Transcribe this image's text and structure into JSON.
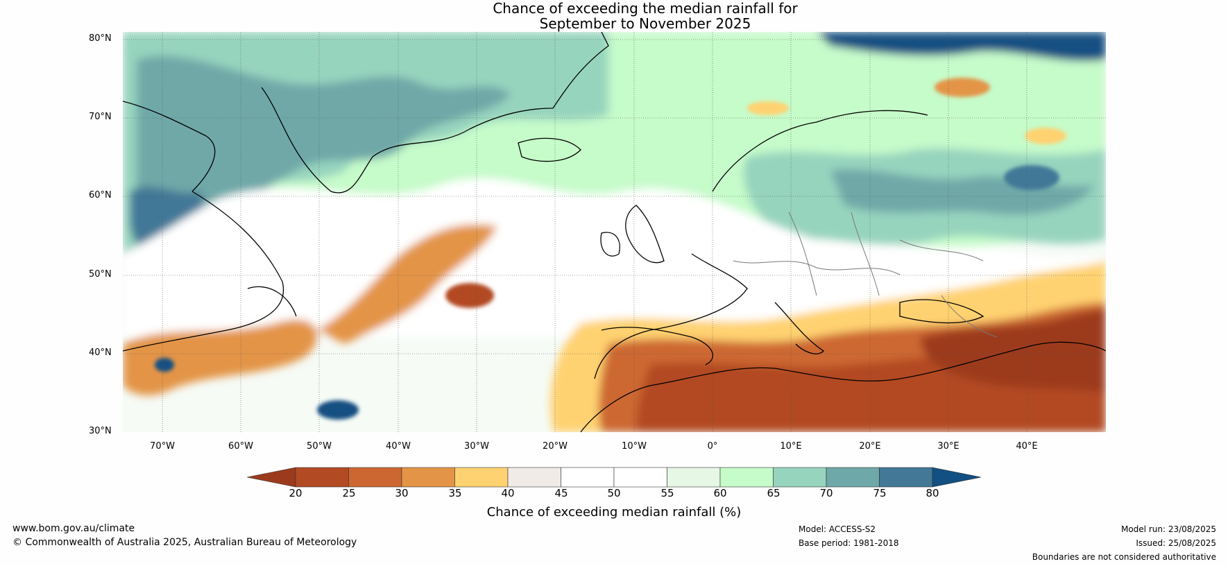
{
  "title_line1": "Chance of exceeding the median rainfall for",
  "title_line2": "September to November 2025",
  "lat_labels": [
    "80°N",
    "70°N",
    "60°N",
    "50°N",
    "40°N",
    "30°N"
  ],
  "lon_labels": [
    "70°W",
    "60°W",
    "50°W",
    "40°W",
    "30°W",
    "20°W",
    "10°W",
    "0°",
    "10°E",
    "20°E",
    "30°E",
    "40°E"
  ],
  "colorbar": {
    "ticks": [
      "20",
      "25",
      "30",
      "35",
      "40",
      "45",
      "50",
      "55",
      "60",
      "65",
      "70",
      "75",
      "80"
    ],
    "colors": [
      "#9c3a1d",
      "#b24a24",
      "#cd6732",
      "#e39446",
      "#ffd271",
      "#f0ebe6",
      "#ffffff",
      "#ffffff",
      "#e6f7e6",
      "#c6fbca",
      "#97d4be",
      "#6fa8a8",
      "#437897",
      "#124f82"
    ],
    "label": "Chance of exceeding median rainfall (%)"
  },
  "footer": {
    "url": "www.bom.gov.au/climate",
    "copyright": "© Commonwealth of Australia 2025, Australian Bureau of Meteorology",
    "model": "Model: ACCESS-S2",
    "base_period": "Base period: 1981-2018",
    "model_run": "Model run: 23/08/2025",
    "issued": "Issued: 25/08/2025",
    "disclaimer": "Boundaries are not considered authoritative"
  }
}
